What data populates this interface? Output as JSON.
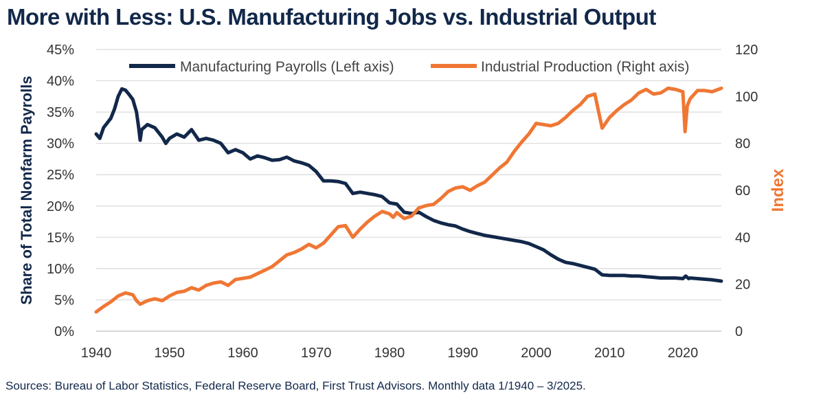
{
  "colors": {
    "payrolls": "#12284a",
    "production": "#ef7734",
    "grid": "#d9d9d9",
    "text": "#12284a"
  },
  "chart_data": {
    "type": "line",
    "title": "More with Less: U.S. Manufacturing Jobs vs. Industrial Output",
    "source": "Sources: Bureau of Labor Statistics, Federal Reserve Board, First Trust Advisors.  Monthly data 1/1940 – 3/2025.",
    "ylabel_left": "Share of Total Nonfarm Payrolls",
    "ylabel_right": "Index",
    "xlim": [
      1940,
      2025.25
    ],
    "ylim_left": [
      0,
      45
    ],
    "ylim_right": [
      0,
      120
    ],
    "x_ticks": [
      "1940",
      "1950",
      "1960",
      "1970",
      "1980",
      "1990",
      "2000",
      "2010",
      "2020"
    ],
    "y_left_ticks": [
      "0%",
      "5%",
      "10%",
      "15%",
      "20%",
      "25%",
      "30%",
      "35%",
      "40%",
      "45%"
    ],
    "y_right_ticks": [
      "0",
      "20",
      "40",
      "60",
      "80",
      "100",
      "120"
    ],
    "grid": "horizontal",
    "legend_position": "top",
    "series": [
      {
        "name": "Manufacturing Payrolls (Left axis)",
        "axis": "left",
        "color": "#12284a",
        "points": [
          [
            1940,
            31.5
          ],
          [
            1940.5,
            30.8
          ],
          [
            1941,
            32.5
          ],
          [
            1942,
            34.0
          ],
          [
            1942.5,
            35.5
          ],
          [
            1943,
            37.5
          ],
          [
            1943.5,
            38.7
          ],
          [
            1944,
            38.5
          ],
          [
            1944.5,
            37.8
          ],
          [
            1945,
            37.0
          ],
          [
            1945.5,
            35.0
          ],
          [
            1945.8,
            32.5
          ],
          [
            1946,
            30.5
          ],
          [
            1946.2,
            32.2
          ],
          [
            1947,
            33.0
          ],
          [
            1948,
            32.5
          ],
          [
            1949,
            31.0
          ],
          [
            1949.5,
            30.0
          ],
          [
            1950,
            30.8
          ],
          [
            1951,
            31.5
          ],
          [
            1952,
            31.0
          ],
          [
            1953,
            32.2
          ],
          [
            1954,
            30.5
          ],
          [
            1955,
            30.8
          ],
          [
            1956,
            30.5
          ],
          [
            1957,
            30.0
          ],
          [
            1958,
            28.5
          ],
          [
            1959,
            29.0
          ],
          [
            1960,
            28.5
          ],
          [
            1961,
            27.5
          ],
          [
            1962,
            28.0
          ],
          [
            1963,
            27.7
          ],
          [
            1964,
            27.3
          ],
          [
            1965,
            27.4
          ],
          [
            1966,
            27.8
          ],
          [
            1967,
            27.2
          ],
          [
            1968,
            26.9
          ],
          [
            1969,
            26.5
          ],
          [
            1970,
            25.5
          ],
          [
            1971,
            24.0
          ],
          [
            1972,
            24.0
          ],
          [
            1973,
            23.9
          ],
          [
            1974,
            23.6
          ],
          [
            1975,
            22.0
          ],
          [
            1976,
            22.2
          ],
          [
            1977,
            22.0
          ],
          [
            1978,
            21.8
          ],
          [
            1979,
            21.5
          ],
          [
            1980,
            20.5
          ],
          [
            1981,
            20.3
          ],
          [
            1982,
            19.0
          ],
          [
            1983,
            18.8
          ],
          [
            1984,
            19.0
          ],
          [
            1985,
            18.3
          ],
          [
            1986,
            17.7
          ],
          [
            1987,
            17.3
          ],
          [
            1988,
            17.0
          ],
          [
            1989,
            16.8
          ],
          [
            1990,
            16.3
          ],
          [
            1991,
            15.9
          ],
          [
            1992,
            15.6
          ],
          [
            1993,
            15.3
          ],
          [
            1994,
            15.1
          ],
          [
            1995,
            14.9
          ],
          [
            1996,
            14.7
          ],
          [
            1997,
            14.5
          ],
          [
            1998,
            14.3
          ],
          [
            1999,
            14.0
          ],
          [
            2000,
            13.5
          ],
          [
            2001,
            13.0
          ],
          [
            2002,
            12.2
          ],
          [
            2003,
            11.5
          ],
          [
            2004,
            11.0
          ],
          [
            2005,
            10.8
          ],
          [
            2006,
            10.5
          ],
          [
            2007,
            10.2
          ],
          [
            2008,
            9.9
          ],
          [
            2009,
            9.0
          ],
          [
            2010,
            8.9
          ],
          [
            2011,
            8.9
          ],
          [
            2012,
            8.9
          ],
          [
            2013,
            8.8
          ],
          [
            2014,
            8.8
          ],
          [
            2015,
            8.7
          ],
          [
            2016,
            8.6
          ],
          [
            2017,
            8.5
          ],
          [
            2018,
            8.5
          ],
          [
            2019,
            8.5
          ],
          [
            2020,
            8.4
          ],
          [
            2020.4,
            8.8
          ],
          [
            2020.8,
            8.4
          ],
          [
            2021,
            8.5
          ],
          [
            2022,
            8.4
          ],
          [
            2023,
            8.3
          ],
          [
            2024,
            8.2
          ],
          [
            2025.25,
            8.0
          ]
        ]
      },
      {
        "name": "Industrial Production (Right axis)",
        "axis": "right",
        "color": "#ef7734",
        "points": [
          [
            1940,
            8.2
          ],
          [
            1941,
            10.5
          ],
          [
            1942,
            12.5
          ],
          [
            1943,
            15.0
          ],
          [
            1944,
            16.3
          ],
          [
            1945,
            15.5
          ],
          [
            1945.5,
            13.0
          ],
          [
            1946,
            11.5
          ],
          [
            1947,
            13.0
          ],
          [
            1948,
            13.8
          ],
          [
            1949,
            13.0
          ],
          [
            1950,
            15.0
          ],
          [
            1951,
            16.5
          ],
          [
            1952,
            17.0
          ],
          [
            1953,
            18.5
          ],
          [
            1954,
            17.5
          ],
          [
            1955,
            19.5
          ],
          [
            1956,
            20.5
          ],
          [
            1957,
            21.0
          ],
          [
            1958,
            19.5
          ],
          [
            1959,
            22.0
          ],
          [
            1960,
            22.5
          ],
          [
            1961,
            23.0
          ],
          [
            1962,
            24.5
          ],
          [
            1963,
            26.0
          ],
          [
            1964,
            27.5
          ],
          [
            1965,
            30.0
          ],
          [
            1966,
            32.5
          ],
          [
            1967,
            33.5
          ],
          [
            1968,
            35.0
          ],
          [
            1969,
            37.0
          ],
          [
            1970,
            35.5
          ],
          [
            1971,
            37.5
          ],
          [
            1972,
            41.0
          ],
          [
            1973,
            44.5
          ],
          [
            1974,
            45.0
          ],
          [
            1975,
            40.0
          ],
          [
            1976,
            43.5
          ],
          [
            1977,
            46.5
          ],
          [
            1978,
            49.0
          ],
          [
            1979,
            51.0
          ],
          [
            1980,
            50.0
          ],
          [
            1980.5,
            48.5
          ],
          [
            1981,
            50.5
          ],
          [
            1982,
            48.0
          ],
          [
            1983,
            49.0
          ],
          [
            1984,
            52.5
          ],
          [
            1985,
            53.5
          ],
          [
            1986,
            54.0
          ],
          [
            1987,
            56.5
          ],
          [
            1988,
            59.5
          ],
          [
            1989,
            61.0
          ],
          [
            1990,
            61.5
          ],
          [
            1991,
            60.0
          ],
          [
            1992,
            62.0
          ],
          [
            1993,
            63.5
          ],
          [
            1994,
            66.5
          ],
          [
            1995,
            69.5
          ],
          [
            1996,
            72.0
          ],
          [
            1997,
            76.5
          ],
          [
            1998,
            80.5
          ],
          [
            1999,
            84.0
          ],
          [
            2000,
            88.5
          ],
          [
            2001,
            88.0
          ],
          [
            2002,
            87.5
          ],
          [
            2003,
            88.5
          ],
          [
            2004,
            91.0
          ],
          [
            2005,
            94.0
          ],
          [
            2006,
            96.5
          ],
          [
            2007,
            100.0
          ],
          [
            2008,
            101.0
          ],
          [
            2009,
            86.5
          ],
          [
            2010,
            91.0
          ],
          [
            2011,
            94.0
          ],
          [
            2012,
            96.5
          ],
          [
            2013,
            98.5
          ],
          [
            2014,
            101.5
          ],
          [
            2015,
            103.0
          ],
          [
            2016,
            101.0
          ],
          [
            2017,
            101.5
          ],
          [
            2018,
            103.5
          ],
          [
            2019,
            103.0
          ],
          [
            2020,
            102.0
          ],
          [
            2020.3,
            85.0
          ],
          [
            2020.6,
            96.0
          ],
          [
            2021,
            99.0
          ],
          [
            2022,
            102.5
          ],
          [
            2023,
            102.5
          ],
          [
            2024,
            102.0
          ],
          [
            2025.25,
            103.5
          ]
        ]
      }
    ]
  }
}
